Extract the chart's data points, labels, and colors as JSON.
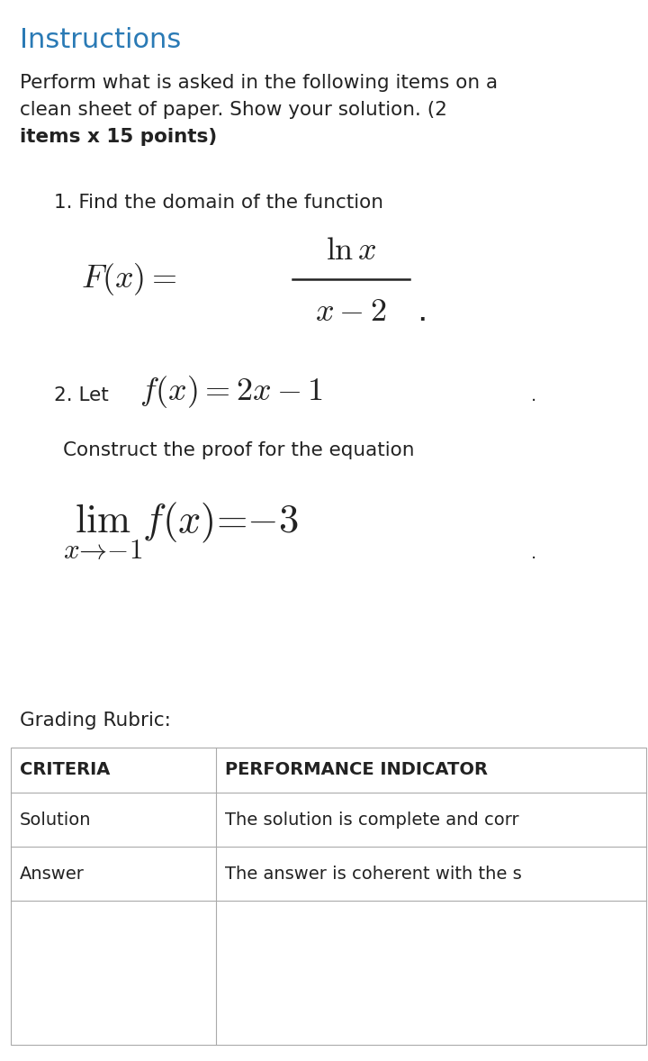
{
  "bg_color": "#ffffff",
  "title_text": "Instructions",
  "title_color": "#2a7ab5",
  "title_fontsize": 22,
  "body_color": "#222222",
  "body_fontsize": 15.5,
  "item_label_fontsize": 15.5,
  "formula_fontsize": 26,
  "item2_fontsize": 26,
  "lim_fontsize": 32,
  "grading_fontsize": 15.5,
  "table_header_fontsize": 14,
  "table_body_fontsize": 14,
  "table_col1_header": "CRITERIA",
  "table_col2_header": "PERFORMANCE INDICATOR",
  "table_row1_col1": "Solution",
  "table_row1_col2": "The solution is complete and corr",
  "table_row2_col1": "Answer",
  "table_row2_col2": "The answer is coherent with the s"
}
